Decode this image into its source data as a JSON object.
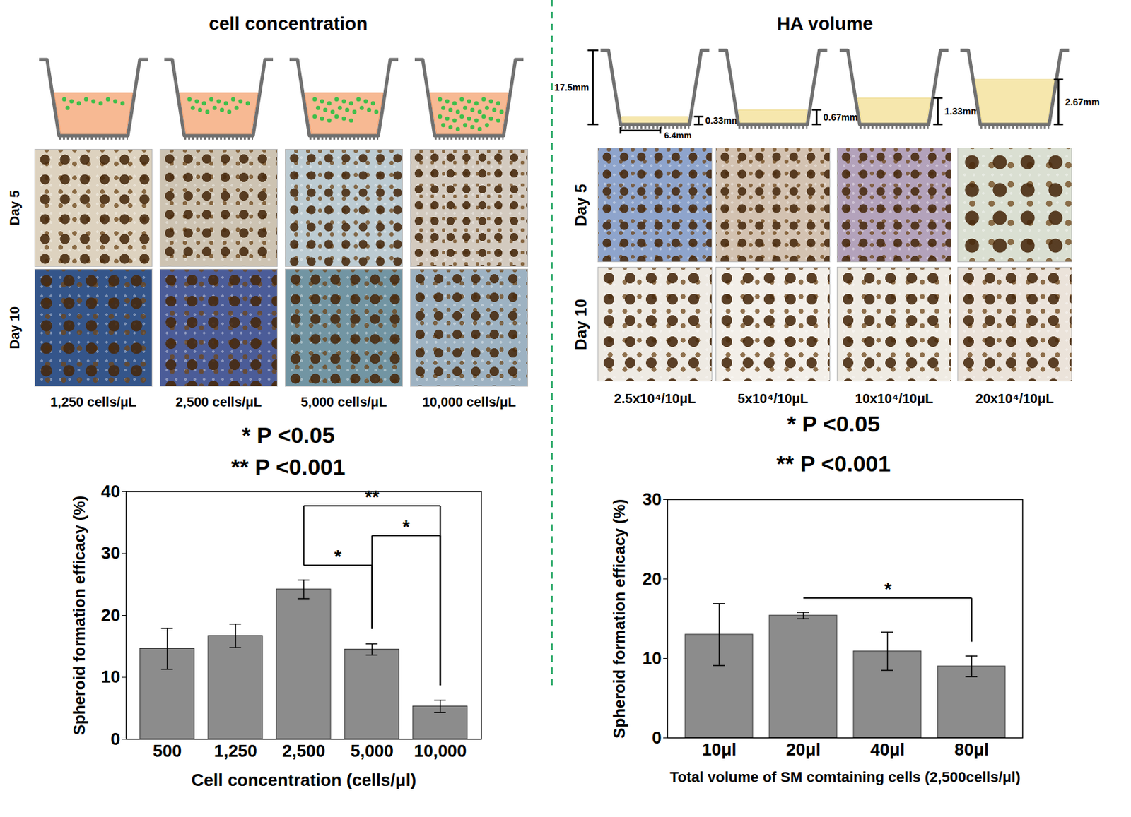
{
  "panels": [
    {
      "title": "cell concentration",
      "row_labels": [
        "Day 5",
        "Day 10"
      ],
      "image_labels": [
        "1,250 cells/μL",
        "2,500 cells/μL",
        "5,000 cells/μL",
        "10,000 cells/μL"
      ]
    },
    {
      "title": "HA volume",
      "row_labels": [
        "Day 5",
        "Day 10"
      ],
      "image_labels": [
        "2.5x10⁴/10μL",
        "5x10⁴/10μL",
        "10x10⁴/10μL",
        "20x10⁴/10μL"
      ],
      "schematic_labels": {
        "well_height": "17.5mm",
        "well_width": "6.4mm",
        "gel_heights": [
          "0.33mm",
          "0.67mm",
          "1.33mm",
          "2.67mm"
        ]
      }
    }
  ],
  "chart_data": [
    {
      "type": "bar",
      "categories": [
        "500",
        "1,250",
        "2,500",
        "5,000",
        "10,000"
      ],
      "values": [
        14.6,
        16.7,
        24.2,
        14.5,
        5.3
      ],
      "errors": [
        3.3,
        1.9,
        1.5,
        0.9,
        1.0
      ],
      "color": "#8c8c8c",
      "xlabel": "Cell concentration (cells/μl)",
      "ylabel": "Spheroid formation efficacy (%)",
      "ylim": [
        0,
        40
      ],
      "yticks": [
        0,
        10,
        20,
        30,
        40
      ],
      "grid": false,
      "annotations": [
        "* P <0.05",
        "** P <0.001"
      ],
      "significance": [
        {
          "from": "2,500",
          "to": "10,000",
          "label": "**"
        },
        {
          "from": "2,500",
          "to": "5,000",
          "label": "*"
        },
        {
          "from": "5,000",
          "to": "10,000",
          "label": "*"
        }
      ]
    },
    {
      "type": "bar",
      "categories": [
        "10μl",
        "20μl",
        "40μl",
        "80μl"
      ],
      "values": [
        13.0,
        15.4,
        10.9,
        9.0
      ],
      "errors": [
        3.9,
        0.4,
        2.4,
        1.3
      ],
      "color": "#8c8c8c",
      "xlabel": "Total volume of SM comtaining cells (2,500cells/μl)",
      "ylabel": "Spheroid formation efficacy (%)",
      "ylim": [
        0,
        30
      ],
      "yticks": [
        0,
        10,
        20,
        30
      ],
      "grid": false,
      "annotations": [
        "* P <0.05",
        "** P <0.001"
      ],
      "significance": [
        {
          "from": "20μl",
          "to": "80μl",
          "label": "*"
        }
      ]
    }
  ]
}
